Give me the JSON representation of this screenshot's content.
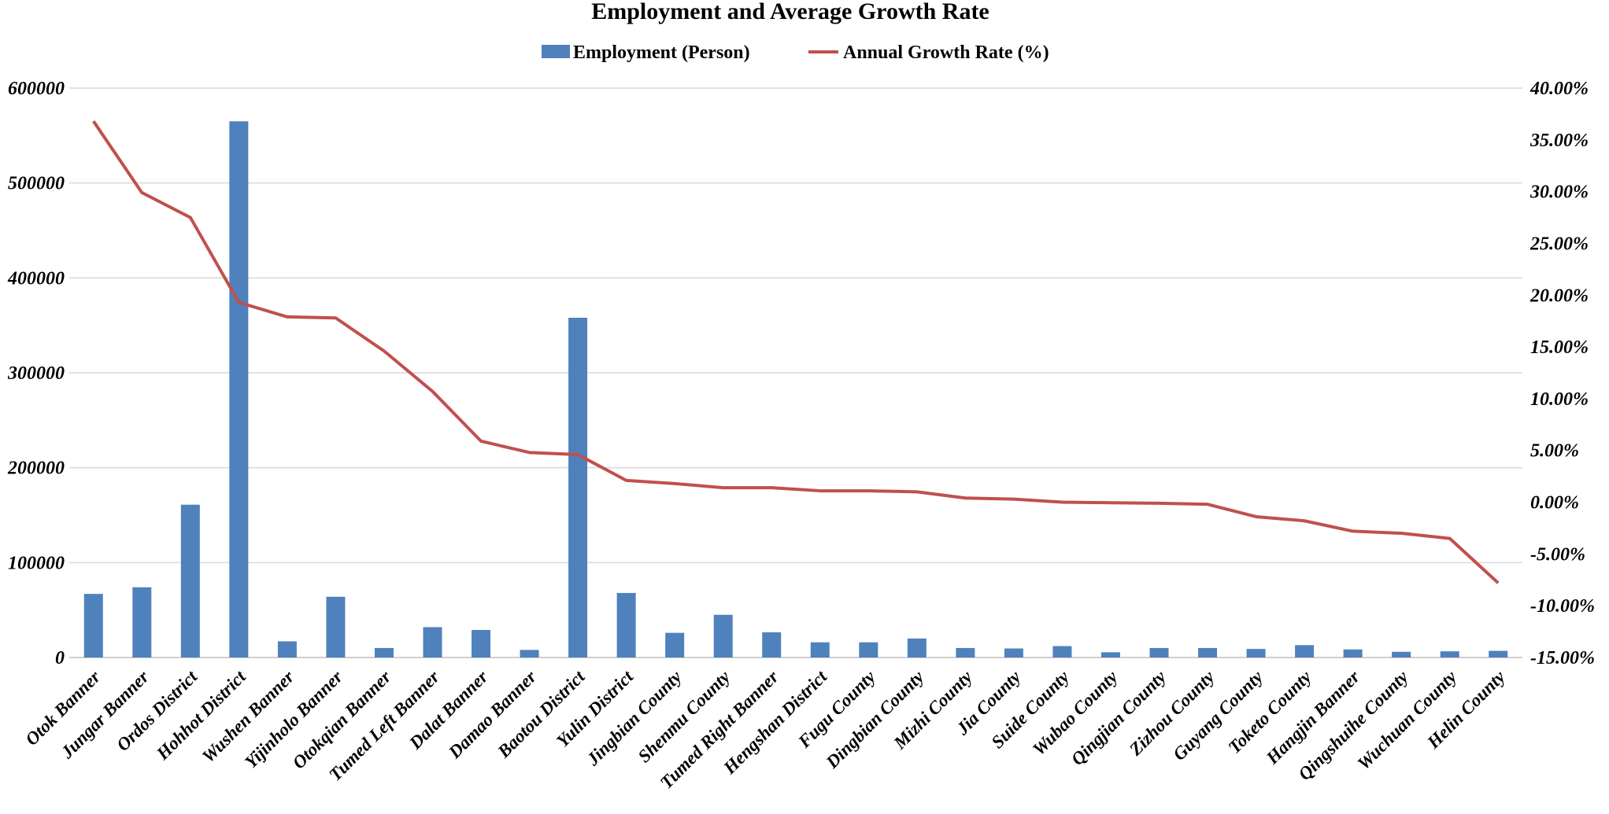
{
  "chart_data": {
    "type": "bar+line",
    "title": "Employment and Average Growth Rate",
    "legend_position": "top-center",
    "grid": true,
    "colors": {
      "bar": "#4f81bd",
      "line": "#c0504d",
      "grid": "#d9d9d9",
      "text": "#000000"
    },
    "categories": [
      "Otok Banner",
      "Jungar Banner",
      "Ordos District",
      "Hohhot District",
      "Wushen Banner",
      "Yijinholo Banner",
      "Otokqian Banner",
      "Tumed Left Banner",
      "Dalat Banner",
      "Damao Banner",
      "Baotou District",
      "Yulin District",
      "Jingbian County",
      "Shenmu County",
      "Tumed Right Banner",
      "Hengshan District",
      "Fugu County",
      "Dingbian County",
      "Mizhi County",
      "Jia County",
      "Suide County",
      "Wubao County",
      "Qingjian County",
      "Zizhou County",
      "Guyang County",
      "Toketo County",
      "Hangjin Banner",
      "Qingshuihe County",
      "Wuchuan County",
      "Helin County"
    ],
    "series": [
      {
        "name": "Employment (Person)",
        "type": "bar",
        "axis": "left",
        "values": [
          67000,
          74000,
          161000,
          565000,
          17000,
          64000,
          10000,
          32000,
          29000,
          8000,
          358000,
          68000,
          26000,
          45000,
          26500,
          16000,
          16000,
          20000,
          10000,
          9500,
          12000,
          5500,
          10000,
          10000,
          9000,
          13000,
          8500,
          6000,
          6500,
          7000
        ]
      },
      {
        "name": "Annual Growth Rate (%)",
        "type": "line",
        "axis": "right",
        "values": [
          36.8,
          29.9,
          27.5,
          19.3,
          17.9,
          17.8,
          14.6,
          10.7,
          5.9,
          4.8,
          4.6,
          2.1,
          1.8,
          1.4,
          1.4,
          1.1,
          1.1,
          1.0,
          0.4,
          0.3,
          0.0,
          -0.05,
          -0.1,
          -0.2,
          -1.4,
          -1.8,
          -2.8,
          -3.0,
          -3.5,
          -7.8
        ]
      }
    ],
    "y_left": {
      "min": 0,
      "max": 600000,
      "ticks": [
        0,
        100000,
        200000,
        300000,
        400000,
        500000,
        600000
      ],
      "tick_labels": [
        "0",
        "100000",
        "200000",
        "300000",
        "400000",
        "500000",
        "600000"
      ]
    },
    "y_right": {
      "min": -15,
      "max": 40,
      "ticks": [
        -15,
        -10,
        -5,
        0,
        5,
        10,
        15,
        20,
        25,
        30,
        35,
        40
      ],
      "tick_labels": [
        "-15.00%",
        "-10.00%",
        "-5.00%",
        "0.00%",
        "5.00%",
        "10.00%",
        "15.00%",
        "20.00%",
        "25.00%",
        "30.00%",
        "35.00%",
        "40.00%"
      ]
    }
  }
}
